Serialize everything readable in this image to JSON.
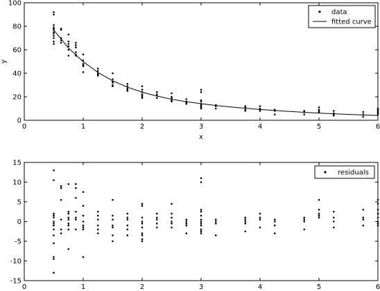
{
  "chart_data": [
    {
      "type": "scatter",
      "xlabel": "x",
      "ylabel": "y",
      "xlim": [
        0,
        6
      ],
      "ylim": [
        0,
        100
      ],
      "xticks": [
        "0",
        "1",
        "2",
        "3",
        "4",
        "5",
        "6"
      ],
      "yticks": [
        "0",
        "20",
        "40",
        "60",
        "80",
        "100"
      ],
      "legend": {
        "position": "top-right",
        "entries": [
          "data",
          "fitted curve"
        ]
      },
      "grid": false,
      "series": [
        {
          "name": "data",
          "kind": "points",
          "x": [
            0.5,
            0.5,
            0.5,
            0.5,
            0.5,
            0.5,
            0.5,
            0.5,
            0.5,
            0.5,
            0.5,
            0.5,
            0.625,
            0.625,
            0.625,
            0.625,
            0.625,
            0.75,
            0.75,
            0.75,
            0.75,
            0.75,
            0.75,
            0.875,
            0.875,
            0.875,
            0.875,
            0.875,
            0.875,
            1.0,
            1.0,
            1.0,
            1.0,
            1.0,
            1.0,
            1.25,
            1.25,
            1.25,
            1.25,
            1.25,
            1.5,
            1.5,
            1.5,
            1.5,
            1.5,
            1.5,
            1.75,
            1.75,
            1.75,
            1.75,
            1.75,
            2.0,
            2.0,
            2.0,
            2.0,
            2.0,
            2.0,
            2.0,
            2.25,
            2.25,
            2.25,
            2.25,
            2.5,
            2.5,
            2.5,
            2.5,
            2.5,
            2.75,
            2.75,
            2.75,
            2.75,
            3.0,
            3.0,
            3.0,
            3.0,
            3.0,
            3.0,
            3.0,
            3.0,
            3.0,
            3.25,
            3.25,
            3.25,
            3.75,
            3.75,
            3.75,
            3.75,
            4.0,
            4.0,
            4.0,
            4.0,
            4.25,
            4.25,
            4.25,
            4.75,
            4.75,
            4.75,
            5.0,
            5.0,
            5.0,
            5.0,
            5.25,
            5.25,
            5.25,
            5.25,
            5.75,
            5.75,
            5.75,
            6.0,
            6.0,
            6.0,
            6.0,
            6.0,
            6.0
          ],
          "y": [
            92,
            90,
            81,
            79,
            78,
            77,
            75,
            74,
            72,
            70,
            67,
            65,
            78,
            77,
            70,
            68,
            66,
            73,
            67,
            65,
            63,
            60,
            55,
            66,
            64,
            62,
            58,
            56,
            55,
            56,
            51,
            48,
            47,
            46,
            41,
            44,
            42,
            40,
            39,
            38,
            40,
            35,
            33,
            32,
            30,
            29,
            31,
            29,
            27,
            26,
            25,
            29,
            26,
            24,
            22,
            21,
            20,
            19,
            24,
            22,
            21,
            19,
            23,
            20,
            19,
            17,
            16,
            18,
            16,
            15,
            14,
            26,
            24,
            17,
            16,
            14,
            13,
            12,
            11,
            10,
            13,
            12,
            10,
            12,
            11,
            9,
            8,
            12,
            10,
            9,
            8,
            9,
            8,
            5,
            8,
            7,
            5,
            11,
            9,
            8,
            7,
            8,
            6,
            5,
            4,
            7,
            5,
            3,
            10,
            9,
            8,
            7,
            6,
            5
          ]
        },
        {
          "name": "fitted curve",
          "kind": "line",
          "x": [
            0.5,
            0.75,
            1.0,
            1.25,
            1.5,
            1.75,
            2.0,
            2.25,
            2.5,
            2.75,
            3.0,
            3.25,
            3.5,
            3.75,
            4.0,
            4.25,
            4.5,
            4.75,
            5.0,
            5.25,
            5.5,
            5.75,
            6.0
          ],
          "y": [
            76.7,
            61.5,
            49.8,
            40.7,
            33.6,
            28.2,
            23.9,
            20.6,
            17.9,
            15.8,
            14.1,
            12.6,
            11.3,
            10.2,
            9.2,
            8.3,
            7.5,
            6.8,
            6.1,
            5.5,
            5.0,
            4.5,
            4.1
          ]
        }
      ]
    },
    {
      "type": "scatter",
      "xlim": [
        0,
        6
      ],
      "ylim": [
        -15,
        15
      ],
      "xticks": [
        "0",
        "1",
        "2",
        "3",
        "4",
        "5",
        "6"
      ],
      "yticks": [
        "-15",
        "-10",
        "-5",
        "0",
        "5",
        "10",
        "15"
      ],
      "legend": {
        "position": "top-right",
        "entries": [
          "residuals"
        ]
      },
      "grid": false,
      "series": [
        {
          "name": "residuals",
          "kind": "points",
          "x": [
            0.5,
            0.5,
            0.5,
            0.5,
            0.5,
            0.5,
            0.5,
            0.5,
            0.5,
            0.5,
            0.5,
            0.5,
            0.5,
            0.5,
            0.625,
            0.625,
            0.625,
            0.625,
            0.625,
            0.625,
            0.75,
            0.75,
            0.75,
            0.75,
            0.75,
            0.75,
            0.75,
            0.75,
            0.75,
            0.875,
            0.875,
            0.875,
            0.875,
            0.875,
            0.875,
            0.875,
            1.0,
            1.0,
            1.0,
            1.0,
            1.0,
            1.0,
            1.0,
            1.0,
            1.25,
            1.25,
            1.25,
            1.25,
            1.25,
            1.25,
            1.5,
            1.5,
            1.5,
            1.5,
            1.5,
            1.5,
            1.5,
            1.75,
            1.75,
            1.75,
            1.75,
            1.75,
            1.75,
            2.0,
            2.0,
            2.0,
            2.0,
            2.0,
            2.0,
            2.0,
            2.0,
            2.0,
            2.0,
            2.25,
            2.25,
            2.25,
            2.25,
            2.25,
            2.5,
            2.5,
            2.5,
            2.5,
            2.5,
            2.5,
            2.75,
            2.75,
            2.75,
            2.75,
            2.75,
            3.0,
            3.0,
            3.0,
            3.0,
            3.0,
            3.0,
            3.0,
            3.0,
            3.0,
            3.0,
            3.0,
            3.0,
            3.25,
            3.25,
            3.25,
            3.25,
            3.75,
            3.75,
            3.75,
            3.75,
            3.75,
            4.0,
            4.0,
            4.0,
            4.0,
            4.25,
            4.25,
            4.25,
            4.25,
            4.75,
            4.75,
            4.75,
            4.75,
            5.0,
            5.0,
            5.0,
            5.0,
            5.0,
            5.25,
            5.25,
            5.25,
            5.25,
            5.75,
            5.75,
            5.75,
            5.75,
            6.0,
            6.0,
            6.0,
            6.0,
            6.0,
            6.0,
            6.0,
            6.0
          ],
          "y": [
            13,
            10.5,
            2,
            1.5,
            1,
            0,
            -0.5,
            -1,
            -2,
            -3.5,
            -5.5,
            -9,
            -9.5,
            -13,
            9,
            8.5,
            5.5,
            0.5,
            -2,
            -3,
            9.5,
            2.5,
            2,
            1,
            0.5,
            -0.5,
            -1,
            -2,
            -7,
            9.5,
            8.5,
            6,
            2.5,
            1,
            0.5,
            -2,
            7.5,
            4,
            1.5,
            0,
            -1,
            -1.5,
            -2,
            -9,
            2.5,
            1.5,
            0.5,
            -1,
            -2,
            -3,
            5.5,
            1.5,
            0.5,
            -1,
            -1.5,
            -3.5,
            -5,
            2,
            1,
            0.5,
            -1,
            -2,
            -3.5,
            4.5,
            4,
            1,
            0,
            -0.5,
            -1.5,
            -3,
            -3.5,
            -4.5,
            -5,
            2,
            1,
            0.5,
            -0.5,
            -1.5,
            4.5,
            2,
            1,
            0,
            -0.5,
            -1.5,
            0.5,
            0,
            -0.5,
            -1,
            -3,
            11,
            10,
            3,
            2.5,
            1.5,
            0.5,
            0,
            -0.5,
            -1,
            -2,
            -2.5,
            -3,
            0.5,
            0,
            -0.5,
            -3.5,
            1,
            0.5,
            0,
            -0.5,
            -2.5,
            2,
            1,
            0.5,
            -1.5,
            0.5,
            0,
            -1,
            -3,
            1,
            0.5,
            0,
            -2,
            5.5,
            3,
            2,
            1.5,
            1,
            2.5,
            1,
            0,
            -1.5,
            3,
            1,
            0.5,
            -1,
            5.5,
            4.5,
            3,
            2,
            1,
            0,
            -0.5,
            -1
          ]
        }
      ]
    }
  ]
}
